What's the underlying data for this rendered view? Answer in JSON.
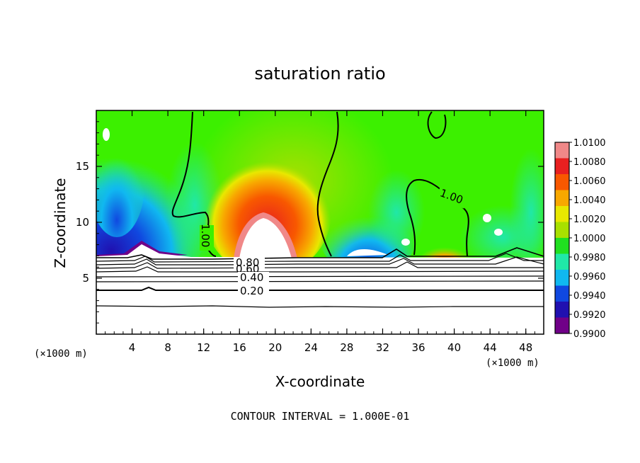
{
  "chart_data": {
    "type": "heatmap",
    "title": "saturation ratio",
    "xlabel": "X-coordinate",
    "ylabel": "Z-coordinate",
    "x_unit_label_left": "(×1000 m)",
    "x_unit_label_right": "(×1000 m)",
    "xlim": [
      0,
      50
    ],
    "ylim": [
      0,
      20
    ],
    "x_ticks": [
      4,
      8,
      12,
      16,
      20,
      24,
      28,
      32,
      36,
      40,
      44,
      48
    ],
    "y_ticks": [
      5,
      10,
      15
    ],
    "colorbar": {
      "min": 0.99,
      "max": 1.01,
      "tick_labels": [
        "1.0100",
        "1.0080",
        "1.0060",
        "1.0040",
        "1.0020",
        "1.0000",
        "0.9980",
        "0.9960",
        "0.9940",
        "0.9920",
        "0.9900"
      ],
      "colors": [
        "#f08888",
        "#e82020",
        "#f85800",
        "#f8a800",
        "#e8e800",
        "#a8e000",
        "#20e020",
        "#20e8a8",
        "#10b8f0",
        "#1048e0",
        "#2010b0",
        "#700088"
      ]
    },
    "contour_labels": [
      "1.00",
      "1.00",
      "0.80",
      "0.60",
      "0.40",
      "0.20"
    ],
    "contour_interval_text": "CONTOUR INTERVAL = 1.000E-01"
  },
  "colors": {
    "background": "#ffffff",
    "field_base": "#3cf000"
  }
}
